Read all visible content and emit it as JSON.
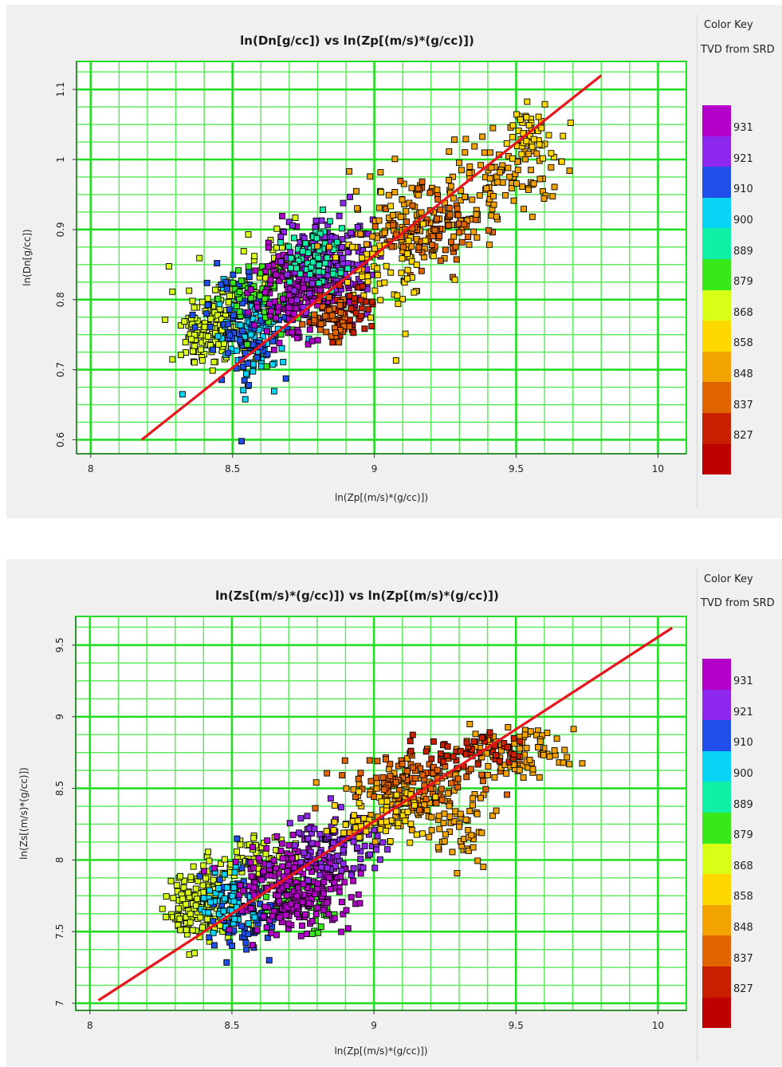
{
  "chart_data": [
    {
      "type": "scatter",
      "title": "ln(Dn[g/cc]) vs ln(Zp[(m/s)*(g/cc)])",
      "xlabel": "ln(Zp[(m/s)*(g/cc)])",
      "ylabel": "ln(Dn[g/cc])",
      "xlim": [
        7.95,
        10.1
      ],
      "ylim": [
        0.58,
        1.14
      ],
      "xticks": [
        8,
        8.5,
        9,
        9.5,
        10
      ],
      "yticks": [
        0.6,
        0.7,
        0.8,
        0.9,
        1,
        1.1
      ],
      "grid": true,
      "color_key": {
        "title": "Color Key",
        "subtitle": "TVD from SRD",
        "labels": [
          "931",
          "921",
          "910",
          "900",
          "889",
          "879",
          "868",
          "858",
          "848",
          "837",
          "827"
        ]
      },
      "fit_line": {
        "x": [
          8.18,
          9.8
        ],
        "y": [
          0.6,
          1.12
        ],
        "color": "#e8141e"
      },
      "clusters": [
        {
          "depth": 868,
          "cx": 8.42,
          "cy": 0.76,
          "sx": 0.07,
          "sy": 0.03,
          "n": 160
        },
        {
          "depth": 868,
          "cx": 8.7,
          "cy": 0.84,
          "sx": 0.08,
          "sy": 0.025,
          "n": 80
        },
        {
          "depth": 900,
          "cx": 8.58,
          "cy": 0.75,
          "sx": 0.06,
          "sy": 0.035,
          "n": 110
        },
        {
          "depth": 910,
          "cx": 8.55,
          "cy": 0.76,
          "sx": 0.08,
          "sy": 0.04,
          "n": 90
        },
        {
          "depth": 879,
          "cx": 8.62,
          "cy": 0.8,
          "sx": 0.07,
          "sy": 0.03,
          "n": 70
        },
        {
          "depth": 931,
          "cx": 8.75,
          "cy": 0.82,
          "sx": 0.08,
          "sy": 0.035,
          "n": 220
        },
        {
          "depth": 921,
          "cx": 8.85,
          "cy": 0.86,
          "sx": 0.08,
          "sy": 0.03,
          "n": 150
        },
        {
          "depth": 889,
          "cx": 8.78,
          "cy": 0.86,
          "sx": 0.06,
          "sy": 0.025,
          "n": 60
        },
        {
          "depth": 848,
          "cx": 9.15,
          "cy": 0.91,
          "sx": 0.12,
          "sy": 0.03,
          "n": 130
        },
        {
          "depth": 837,
          "cx": 9.2,
          "cy": 0.9,
          "sx": 0.08,
          "sy": 0.03,
          "n": 90
        },
        {
          "depth": 858,
          "cx": 9.05,
          "cy": 0.84,
          "sx": 0.08,
          "sy": 0.04,
          "n": 60
        },
        {
          "depth": 848,
          "cx": 9.45,
          "cy": 0.98,
          "sx": 0.09,
          "sy": 0.03,
          "n": 90
        },
        {
          "depth": 858,
          "cx": 9.55,
          "cy": 1.04,
          "sx": 0.06,
          "sy": 0.02,
          "n": 50
        },
        {
          "depth": 827,
          "cx": 8.9,
          "cy": 0.78,
          "sx": 0.05,
          "sy": 0.02,
          "n": 50
        },
        {
          "depth": 837,
          "cx": 8.85,
          "cy": 0.77,
          "sx": 0.05,
          "sy": 0.015,
          "n": 40
        }
      ]
    },
    {
      "type": "scatter",
      "title": "ln(Zs[(m/s)*(g/cc)]) vs ln(Zp[(m/s)*(g/cc)])",
      "xlabel": "ln(Zp[(m/s)*(g/cc)])",
      "ylabel": "ln(Zs[(m/s)*(g/cc)])",
      "xlim": [
        7.95,
        10.1
      ],
      "ylim": [
        6.95,
        9.7
      ],
      "xticks": [
        8,
        8.5,
        9,
        9.5,
        10
      ],
      "yticks": [
        7,
        7.5,
        8,
        8.5,
        9,
        9.5
      ],
      "grid": true,
      "color_key": {
        "title": "Color Key",
        "subtitle": "TVD from SRD",
        "labels": [
          "931",
          "921",
          "910",
          "900",
          "889",
          "879",
          "868",
          "858",
          "848",
          "837",
          "827"
        ]
      },
      "fit_line": {
        "x": [
          8.03,
          10.05
        ],
        "y": [
          7.02,
          9.62
        ],
        "color": "#e8141e"
      },
      "clusters": [
        {
          "depth": 868,
          "cx": 8.4,
          "cy": 7.7,
          "sx": 0.06,
          "sy": 0.12,
          "n": 170
        },
        {
          "depth": 868,
          "cx": 8.6,
          "cy": 8.0,
          "sx": 0.07,
          "sy": 0.08,
          "n": 60
        },
        {
          "depth": 910,
          "cx": 8.55,
          "cy": 7.65,
          "sx": 0.07,
          "sy": 0.15,
          "n": 90
        },
        {
          "depth": 900,
          "cx": 8.5,
          "cy": 7.7,
          "sx": 0.05,
          "sy": 0.1,
          "n": 60
        },
        {
          "depth": 879,
          "cx": 8.75,
          "cy": 7.7,
          "sx": 0.06,
          "sy": 0.1,
          "n": 50
        },
        {
          "depth": 931,
          "cx": 8.72,
          "cy": 7.8,
          "sx": 0.1,
          "sy": 0.15,
          "n": 260
        },
        {
          "depth": 921,
          "cx": 8.85,
          "cy": 8.1,
          "sx": 0.08,
          "sy": 0.12,
          "n": 110
        },
        {
          "depth": 848,
          "cx": 9.15,
          "cy": 8.4,
          "sx": 0.12,
          "sy": 0.12,
          "n": 130
        },
        {
          "depth": 837,
          "cx": 9.15,
          "cy": 8.55,
          "sx": 0.12,
          "sy": 0.1,
          "n": 110
        },
        {
          "depth": 858,
          "cx": 9.0,
          "cy": 8.3,
          "sx": 0.08,
          "sy": 0.1,
          "n": 60
        },
        {
          "depth": 848,
          "cx": 9.5,
          "cy": 8.75,
          "sx": 0.1,
          "sy": 0.1,
          "n": 90
        },
        {
          "depth": 827,
          "cx": 9.35,
          "cy": 8.75,
          "sx": 0.1,
          "sy": 0.06,
          "n": 50
        },
        {
          "depth": 848,
          "cx": 9.3,
          "cy": 8.15,
          "sx": 0.06,
          "sy": 0.08,
          "n": 30
        }
      ]
    }
  ],
  "colors": {
    "depth_scale": {
      "931": "#b300c8",
      "921": "#8f28ef",
      "910": "#1f4fe8",
      "900": "#08d4f5",
      "889": "#10f0a6",
      "879": "#39e81b",
      "868": "#d8ff16",
      "858": "#ffd800",
      "848": "#f3a300",
      "837": "#e06400",
      "827": "#c81f00",
      "bottom": "#bf0000"
    },
    "grid_major": "#22dd22",
    "grid_minor": "#55e855",
    "fit_line": "#e8141e"
  }
}
